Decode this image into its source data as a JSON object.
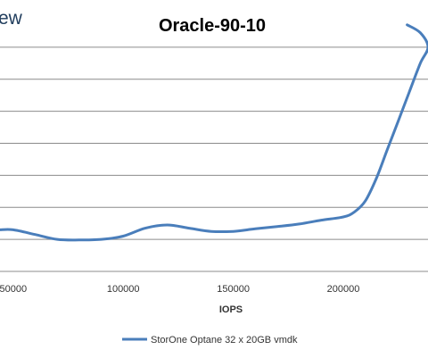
{
  "brand": {
    "partial_text": "ew"
  },
  "chart_data": {
    "type": "line",
    "title": "Oracle-90-10",
    "xlabel": "IOPS",
    "ylabel": "",
    "x_ticks": [
      "50000",
      "100000",
      "150000",
      "200000"
    ],
    "xlim": [
      44000,
      238500
    ],
    "ylim": [
      0,
      8
    ],
    "y_gridlines": [
      1,
      2,
      3,
      4,
      5,
      6,
      7
    ],
    "grid": true,
    "legend_position": "bottom",
    "series_color": "#4a7ebb",
    "series": [
      {
        "name": "StorOne Optane 32 x 20GB vmdk",
        "x": [
          44000,
          50000,
          60000,
          70000,
          80000,
          90000,
          100000,
          110000,
          120000,
          130000,
          140000,
          150000,
          160000,
          170000,
          180000,
          190000,
          200000,
          205000,
          210000,
          215000,
          220000,
          225000,
          230000,
          235000,
          238500,
          235000,
          229000
        ],
        "y": [
          1.3,
          1.3,
          1.15,
          1.0,
          0.98,
          1.0,
          1.1,
          1.35,
          1.45,
          1.35,
          1.25,
          1.25,
          1.33,
          1.4,
          1.48,
          1.6,
          1.7,
          1.85,
          2.2,
          2.9,
          3.8,
          4.7,
          5.6,
          6.5,
          7.0,
          7.45,
          7.7
        ]
      }
    ]
  }
}
